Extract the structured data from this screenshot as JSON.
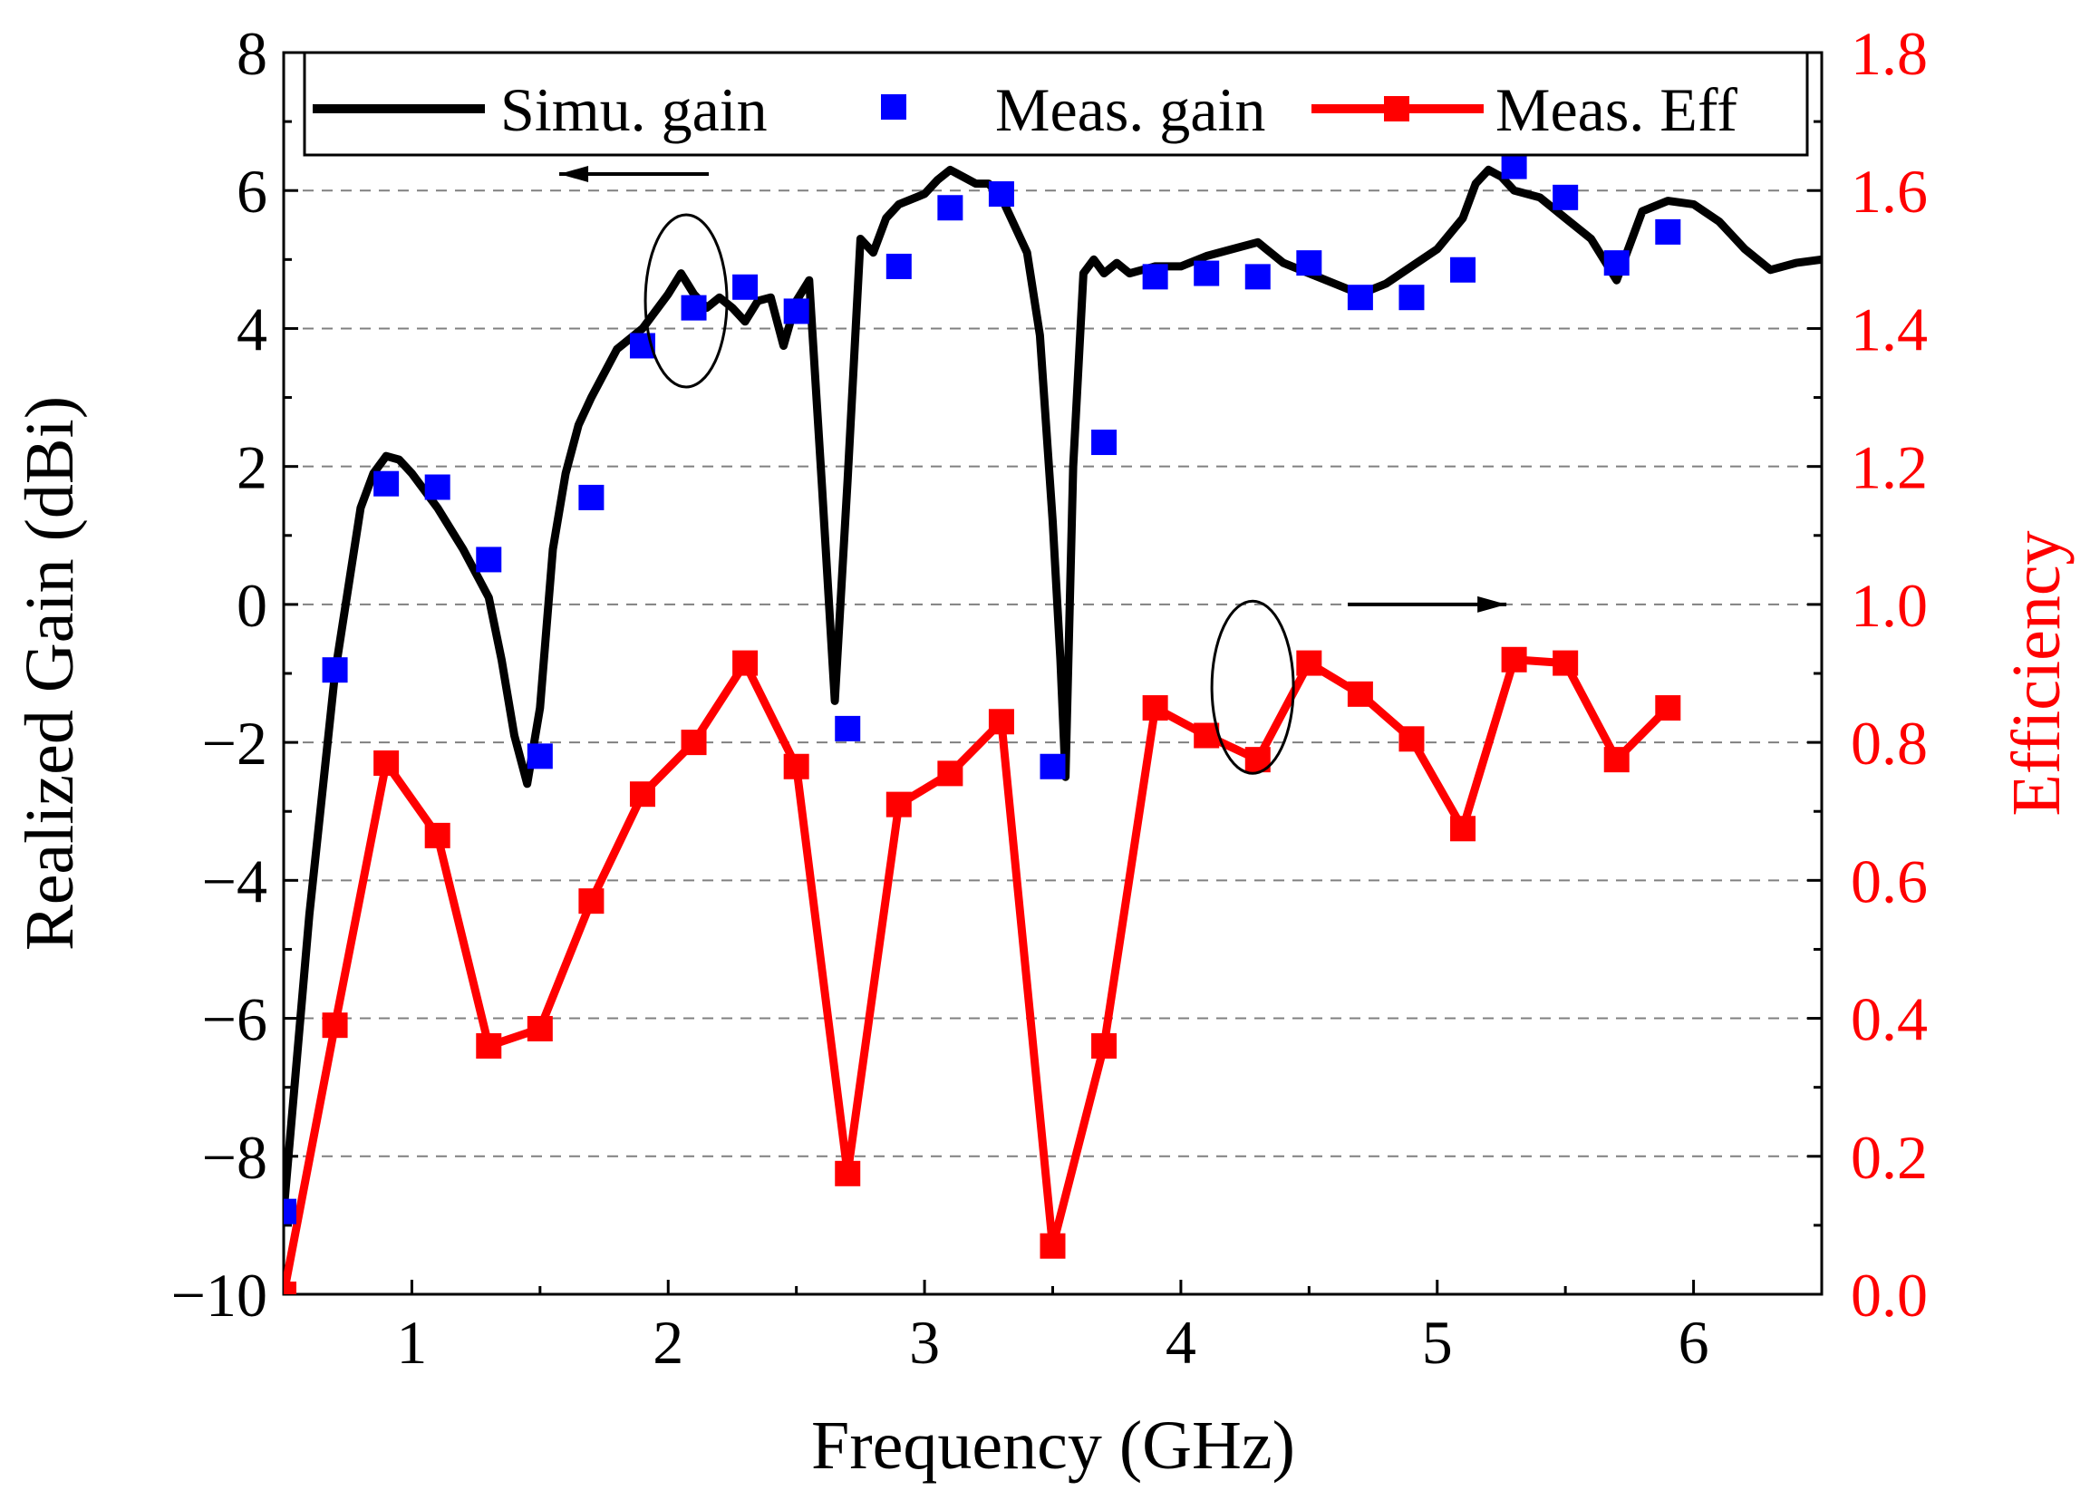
{
  "chart_data": {
    "type": "line",
    "xlabel": "Frequency (GHz)",
    "ylabel": "Realized Gain (dBi)",
    "y2label": "Efficiency",
    "xlim": [
      0.5,
      6.5
    ],
    "ylim": [
      -10,
      8
    ],
    "y2lim": [
      0.0,
      1.8
    ],
    "xticks": [
      1,
      2,
      3,
      4,
      5,
      6
    ],
    "xtick_labels": [
      "1",
      "2",
      "3",
      "4",
      "5",
      "6"
    ],
    "yticks": [
      -10,
      -8,
      -6,
      -4,
      -2,
      0,
      2,
      4,
      6,
      8
    ],
    "ytick_labels": [
      "−10",
      "−8",
      "−6",
      "−4",
      "−2",
      "0",
      "2",
      "4",
      "6",
      "8"
    ],
    "y2ticks": [
      0.0,
      0.2,
      0.4,
      0.6,
      0.8,
      1.0,
      1.2,
      1.4,
      1.6,
      1.8
    ],
    "y2tick_labels": [
      "0.0",
      "0.2",
      "0.4",
      "0.6",
      "0.8",
      "1.0",
      "1.2",
      "1.4",
      "1.6",
      "1.8"
    ],
    "grid": "dashed horizontal at left-axis ticks",
    "legend_position": "top",
    "annotations": [
      {
        "type": "ellipse-arrow",
        "target": "Simu. gain / Meas. gain",
        "x": 2.07,
        "y": 4.4,
        "arrow": "left"
      },
      {
        "type": "ellipse-arrow",
        "target": "Meas. Eff",
        "x": 4.28,
        "y": -1.2,
        "arrow": "right"
      }
    ],
    "colors": {
      "simu": "#000000",
      "meas_gain": "#0000ff",
      "meas_eff": "#ff0000"
    },
    "series": [
      {
        "name": "Simu. gain",
        "axis": "left",
        "style": "line",
        "x": [
          0.5,
          0.6,
          0.7,
          0.8,
          0.85,
          0.9,
          0.95,
          1.0,
          1.1,
          1.2,
          1.3,
          1.35,
          1.4,
          1.45,
          1.5,
          1.55,
          1.6,
          1.65,
          1.7,
          1.8,
          1.9,
          2.0,
          2.05,
          2.1,
          2.15,
          2.2,
          2.25,
          2.3,
          2.35,
          2.4,
          2.45,
          2.5,
          2.55,
          2.6,
          2.65,
          2.7,
          2.75,
          2.8,
          2.85,
          2.9,
          3.0,
          3.05,
          3.1,
          3.15,
          3.2,
          3.25,
          3.3,
          3.35,
          3.4,
          3.45,
          3.5,
          3.53,
          3.55,
          3.58,
          3.62,
          3.66,
          3.7,
          3.75,
          3.8,
          3.9,
          4.0,
          4.1,
          4.2,
          4.3,
          4.4,
          4.5,
          4.6,
          4.7,
          4.8,
          4.9,
          5.0,
          5.1,
          5.15,
          5.2,
          5.25,
          5.3,
          5.4,
          5.5,
          5.6,
          5.65,
          5.7,
          5.8,
          5.9,
          6.0,
          6.1,
          6.2,
          6.3,
          6.4,
          6.5
        ],
        "y": [
          -8.8,
          -4.5,
          -1.0,
          1.4,
          1.9,
          2.15,
          2.1,
          1.9,
          1.4,
          0.8,
          0.1,
          -0.8,
          -1.9,
          -2.6,
          -1.5,
          0.8,
          1.9,
          2.6,
          3.0,
          3.7,
          4.0,
          4.5,
          4.8,
          4.5,
          4.3,
          4.45,
          4.3,
          4.1,
          4.4,
          4.45,
          3.75,
          4.4,
          4.7,
          1.7,
          -1.4,
          1.8,
          5.3,
          5.1,
          5.6,
          5.8,
          5.95,
          6.15,
          6.3,
          6.2,
          6.1,
          6.1,
          5.9,
          5.5,
          5.1,
          3.9,
          1.2,
          -0.8,
          -2.5,
          2.0,
          4.8,
          5.0,
          4.8,
          4.95,
          4.8,
          4.9,
          4.9,
          5.05,
          5.15,
          5.25,
          4.95,
          4.8,
          4.65,
          4.5,
          4.65,
          4.9,
          5.15,
          5.6,
          6.1,
          6.3,
          6.2,
          6.0,
          5.9,
          5.6,
          5.3,
          5.0,
          4.7,
          5.7,
          5.85,
          5.8,
          5.55,
          5.15,
          4.85,
          4.95,
          5.0
        ]
      },
      {
        "name": "Meas. gain",
        "axis": "left",
        "style": "markers",
        "x": [
          0.5,
          0.7,
          0.9,
          1.1,
          1.3,
          1.5,
          1.7,
          1.9,
          2.1,
          2.3,
          2.5,
          2.7,
          2.9,
          3.1,
          3.3,
          3.5,
          3.7,
          3.9,
          4.1,
          4.3,
          4.5,
          4.7,
          4.9,
          5.1,
          5.3,
          5.5,
          5.7,
          5.9
        ],
        "y": [
          -8.8,
          -0.95,
          1.75,
          1.7,
          0.65,
          -2.2,
          1.55,
          3.75,
          4.3,
          4.6,
          4.25,
          -1.8,
          4.9,
          5.75,
          5.95,
          -2.35,
          2.35,
          4.75,
          4.8,
          4.75,
          4.95,
          4.45,
          4.45,
          4.85,
          6.35,
          5.9,
          4.95,
          5.4
        ]
      },
      {
        "name": "Meas. Eff",
        "axis": "right",
        "style": "line+markers",
        "x": [
          0.5,
          0.7,
          0.9,
          1.1,
          1.3,
          1.5,
          1.7,
          1.9,
          2.1,
          2.3,
          2.5,
          2.7,
          2.9,
          3.1,
          3.3,
          3.5,
          3.7,
          3.9,
          4.1,
          4.3,
          4.5,
          4.7,
          4.9,
          5.1,
          5.3,
          5.5,
          5.7,
          5.9
        ],
        "y": [
          0.0,
          0.39,
          0.77,
          0.665,
          0.36,
          0.385,
          0.57,
          0.725,
          0.8,
          0.915,
          0.765,
          0.175,
          0.71,
          0.755,
          0.83,
          0.07,
          0.36,
          0.85,
          0.81,
          0.775,
          0.915,
          0.87,
          0.805,
          0.675,
          0.92,
          0.915,
          0.775,
          0.85
        ]
      }
    ]
  }
}
